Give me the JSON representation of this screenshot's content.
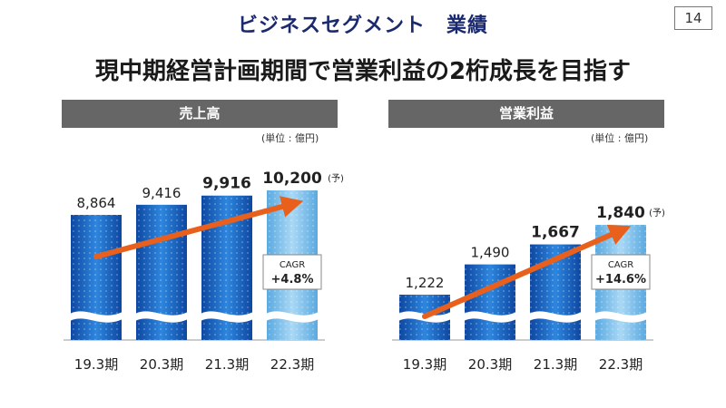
{
  "header": {
    "title": "ビジネスセグメント　業績",
    "page_number": "14"
  },
  "headline": "現中期経営計画期間で営業利益の2桁成長を目指す",
  "colors": {
    "bar_dark": "#1565c0",
    "bar_mid": "#2e86de",
    "bar_forecast": "#8fc8ee",
    "arrow": "#e8601c",
    "panel_header": "#666666"
  },
  "chart_data": [
    {
      "type": "bar",
      "title": "売上高",
      "unit_label": "(単位 : 億円)",
      "categories": [
        "19.3期",
        "20.3期",
        "21.3期",
        "22.3期"
      ],
      "values": [
        8864,
        9416,
        9916,
        10200
      ],
      "value_labels": [
        "8,864",
        "9,416",
        "9,916",
        "10,200"
      ],
      "forecast_index": 3,
      "forecast_mark": "(予)",
      "cagr_label": "CAGR",
      "cagr_value": "+4.8%",
      "axis_break": true,
      "ylim": [
        0,
        10200
      ]
    },
    {
      "type": "bar",
      "title": "営業利益",
      "unit_label": "(単位 : 億円)",
      "categories": [
        "19.3期",
        "20.3期",
        "21.3期",
        "22.3期"
      ],
      "values": [
        1222,
        1490,
        1667,
        1840
      ],
      "value_labels": [
        "1,222",
        "1,490",
        "1,667",
        "1,840"
      ],
      "forecast_index": 3,
      "forecast_mark": "(予)",
      "cagr_label": "CAGR",
      "cagr_value": "+14.6%",
      "axis_break": true,
      "ylim": [
        0,
        1840
      ]
    }
  ]
}
